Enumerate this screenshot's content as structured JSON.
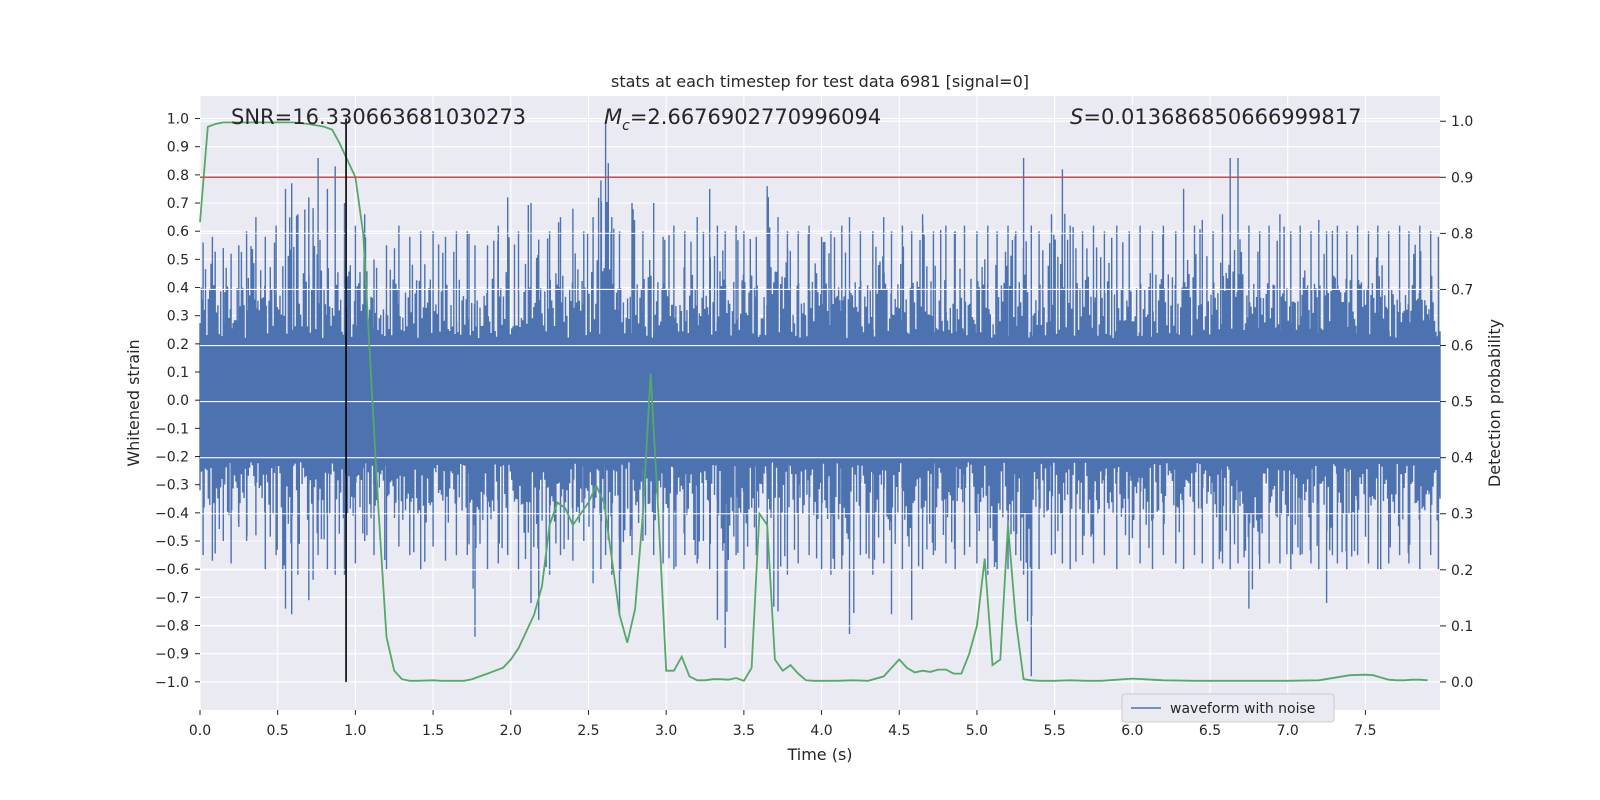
{
  "chart_data": {
    "type": "line",
    "title": "stats at each timestep for test data 6981 [signal=0]",
    "xlabel": "Time (s)",
    "ylabel_left": "Whitened strain",
    "ylabel_right": "Detection probability",
    "xlim": [
      0.0,
      7.98
    ],
    "ylim_left": [
      -1.1,
      1.08
    ],
    "ylim_right": [
      -0.05,
      1.045
    ],
    "x_ticks": [
      "0.0",
      "0.5",
      "1.0",
      "1.5",
      "2.0",
      "2.5",
      "3.0",
      "3.5",
      "4.0",
      "4.5",
      "5.0",
      "5.5",
      "6.0",
      "6.5",
      "7.0",
      "7.5"
    ],
    "y_ticks_left": [
      "1.0",
      "0.9",
      "0.8",
      "0.7",
      "0.6",
      "0.5",
      "0.4",
      "0.3",
      "0.2",
      "0.1",
      "0.0",
      "−0.1",
      "−0.2",
      "−0.3",
      "−0.4",
      "−0.5",
      "−0.6",
      "−0.7",
      "−0.8",
      "−0.9",
      "−1.0"
    ],
    "y_ticks_right": [
      "1.0",
      "0.9",
      "0.8",
      "0.7",
      "0.6",
      "0.5",
      "0.4",
      "0.3",
      "0.2",
      "0.1",
      "0.0"
    ],
    "grid": true,
    "background_color": "#EAEAF2",
    "annotations": {
      "snr": "SNR=16.330663681030273",
      "mc_symbol": "M",
      "mc_sub": "c",
      "mc_value": "=2.6676902770996094",
      "s_symbol": "S",
      "s_value": "=0.013686850666999817"
    },
    "legend": {
      "label": "waveform with noise",
      "placement": "lower right"
    },
    "threshold_line": {
      "y_right": 0.9,
      "color": "#C44E52"
    },
    "vertical_marker": {
      "x": 0.94,
      "y_from": -1.0,
      "y_to": 1.0,
      "color": "#000000"
    },
    "series": [
      {
        "name": "waveform with noise",
        "color": "#4C72B0",
        "axis": "left",
        "envelope_spikes": [
          [
            0.02,
            0.56,
            -0.55
          ],
          [
            0.08,
            0.58,
            -0.57
          ],
          [
            0.15,
            0.54,
            -0.5
          ],
          [
            0.2,
            0.52,
            -0.58
          ],
          [
            0.25,
            0.55,
            -0.45
          ],
          [
            0.3,
            0.6,
            -0.5
          ],
          [
            0.36,
            0.65,
            -0.48
          ],
          [
            0.42,
            0.58,
            -0.6
          ],
          [
            0.49,
            0.62,
            -0.55
          ],
          [
            0.55,
            0.75,
            -0.74
          ],
          [
            0.59,
            0.77,
            -0.76
          ],
          [
            0.63,
            0.66,
            -0.62
          ],
          [
            0.7,
            0.72,
            -0.71
          ],
          [
            0.76,
            0.86,
            -0.55
          ],
          [
            0.82,
            0.75,
            -0.6
          ],
          [
            0.87,
            0.83,
            -0.62
          ],
          [
            0.93,
            0.7,
            -0.62
          ],
          [
            1.0,
            0.62,
            -0.58
          ],
          [
            1.06,
            0.66,
            -0.5
          ],
          [
            1.12,
            0.5,
            -0.55
          ],
          [
            1.2,
            0.55,
            -0.6
          ],
          [
            1.28,
            0.62,
            -0.52
          ],
          [
            1.35,
            0.58,
            -0.55
          ],
          [
            1.42,
            0.6,
            -0.6
          ],
          [
            1.5,
            0.6,
            -0.52
          ],
          [
            1.58,
            0.58,
            -0.57
          ],
          [
            1.65,
            0.6,
            -0.55
          ],
          [
            1.72,
            0.6,
            -0.55
          ],
          [
            1.77,
            0.55,
            -0.84
          ],
          [
            1.85,
            0.55,
            -0.6
          ],
          [
            1.92,
            0.62,
            -0.58
          ],
          [
            1.98,
            0.72,
            -0.55
          ],
          [
            2.05,
            0.6,
            -0.6
          ],
          [
            2.13,
            0.7,
            -0.72
          ],
          [
            2.18,
            0.57,
            -0.78
          ],
          [
            2.25,
            0.6,
            -0.62
          ],
          [
            2.32,
            0.65,
            -0.55
          ],
          [
            2.4,
            0.68,
            -0.57
          ],
          [
            2.47,
            0.6,
            -0.5
          ],
          [
            2.53,
            0.65,
            -0.65
          ],
          [
            2.58,
            0.78,
            -0.6
          ],
          [
            2.61,
            0.98,
            -0.55
          ],
          [
            2.65,
            0.65,
            -0.62
          ],
          [
            2.7,
            0.6,
            -0.76
          ],
          [
            2.78,
            0.7,
            -0.55
          ],
          [
            2.85,
            0.6,
            -0.5
          ],
          [
            2.92,
            0.7,
            -0.55
          ],
          [
            2.98,
            0.58,
            -0.58
          ],
          [
            3.05,
            0.62,
            -0.6
          ],
          [
            3.12,
            0.6,
            -0.55
          ],
          [
            3.2,
            0.65,
            -0.58
          ],
          [
            3.28,
            0.75,
            -0.6
          ],
          [
            3.33,
            0.62,
            -0.78
          ],
          [
            3.38,
            0.6,
            -0.88
          ],
          [
            3.45,
            0.62,
            -0.55
          ],
          [
            3.5,
            0.6,
            -0.6
          ],
          [
            3.58,
            0.58,
            -0.55
          ],
          [
            3.65,
            0.76,
            -0.6
          ],
          [
            3.72,
            0.65,
            -0.75
          ],
          [
            3.78,
            0.6,
            -0.62
          ],
          [
            3.85,
            0.6,
            -0.58
          ],
          [
            3.92,
            0.62,
            -0.55
          ],
          [
            4.0,
            0.58,
            -0.6
          ],
          [
            4.06,
            0.6,
            -0.62
          ],
          [
            4.13,
            0.62,
            -0.6
          ],
          [
            4.18,
            0.65,
            -0.83
          ],
          [
            4.25,
            0.6,
            -0.55
          ],
          [
            4.33,
            0.6,
            -0.62
          ],
          [
            4.4,
            0.65,
            -0.58
          ],
          [
            4.45,
            0.6,
            -0.76
          ],
          [
            4.52,
            0.62,
            -0.6
          ],
          [
            4.58,
            0.6,
            -0.78
          ],
          [
            4.65,
            0.66,
            -0.6
          ],
          [
            4.72,
            0.6,
            -0.55
          ],
          [
            4.8,
            0.62,
            -0.58
          ],
          [
            4.86,
            0.6,
            -0.6
          ],
          [
            4.92,
            0.62,
            -0.55
          ],
          [
            5.0,
            0.6,
            -0.58
          ],
          [
            5.07,
            0.62,
            -0.62
          ],
          [
            5.13,
            0.6,
            -0.6
          ],
          [
            5.2,
            0.62,
            -0.6
          ],
          [
            5.25,
            0.6,
            -0.55
          ],
          [
            5.3,
            0.86,
            -0.62
          ],
          [
            5.35,
            0.62,
            -0.98
          ],
          [
            5.4,
            0.6,
            -0.6
          ],
          [
            5.48,
            0.66,
            -0.55
          ],
          [
            5.55,
            0.82,
            -0.58
          ],
          [
            5.6,
            0.62,
            -0.6
          ],
          [
            5.68,
            0.6,
            -0.55
          ],
          [
            5.75,
            0.62,
            -0.58
          ],
          [
            5.82,
            0.6,
            -0.55
          ],
          [
            5.9,
            0.62,
            -0.6
          ],
          [
            5.98,
            0.6,
            -0.55
          ],
          [
            6.05,
            0.62,
            -0.58
          ],
          [
            6.13,
            0.6,
            -0.6
          ],
          [
            6.2,
            0.62,
            -0.55
          ],
          [
            6.28,
            0.6,
            -0.58
          ],
          [
            6.33,
            0.75,
            -0.6
          ],
          [
            6.4,
            0.62,
            -0.55
          ],
          [
            6.45,
            0.64,
            -0.58
          ],
          [
            6.52,
            0.6,
            -0.6
          ],
          [
            6.58,
            0.66,
            -0.58
          ],
          [
            6.63,
            0.86,
            -0.6
          ],
          [
            6.68,
            0.86,
            -0.58
          ],
          [
            6.75,
            0.62,
            -0.74
          ],
          [
            6.82,
            0.6,
            -0.6
          ],
          [
            6.88,
            0.62,
            -0.58
          ],
          [
            6.95,
            0.66,
            -0.58
          ],
          [
            7.02,
            0.6,
            -0.6
          ],
          [
            7.08,
            0.62,
            -0.55
          ],
          [
            7.15,
            0.6,
            -0.58
          ],
          [
            7.2,
            0.64,
            -0.6
          ],
          [
            7.25,
            0.6,
            -0.72
          ],
          [
            7.32,
            0.62,
            -0.58
          ],
          [
            7.38,
            0.6,
            -0.6
          ],
          [
            7.45,
            0.62,
            -0.55
          ],
          [
            7.52,
            0.6,
            -0.58
          ],
          [
            7.58,
            0.62,
            -0.6
          ],
          [
            7.65,
            0.6,
            -0.58
          ],
          [
            7.72,
            0.62,
            -0.55
          ],
          [
            7.78,
            0.6,
            -0.58
          ],
          [
            7.85,
            0.62,
            -0.6
          ],
          [
            7.92,
            0.6,
            -0.55
          ],
          [
            7.97,
            0.58,
            -0.6
          ]
        ]
      },
      {
        "name": "",
        "color": "#55A868",
        "axis": "right",
        "x": [
          0.0,
          0.05,
          0.1,
          0.15,
          0.2,
          0.3,
          0.4,
          0.5,
          0.6,
          0.7,
          0.8,
          0.85,
          0.9,
          0.95,
          1.0,
          1.05,
          1.1,
          1.15,
          1.2,
          1.25,
          1.3,
          1.35,
          1.4,
          1.5,
          1.55,
          1.6,
          1.7,
          1.75,
          1.8,
          1.85,
          1.9,
          1.95,
          2.0,
          2.05,
          2.1,
          2.15,
          2.2,
          2.25,
          2.3,
          2.35,
          2.4,
          2.45,
          2.5,
          2.55,
          2.6,
          2.65,
          2.7,
          2.75,
          2.8,
          2.85,
          2.9,
          2.95,
          3.0,
          3.05,
          3.1,
          3.15,
          3.2,
          3.25,
          3.3,
          3.35,
          3.4,
          3.45,
          3.5,
          3.55,
          3.6,
          3.65,
          3.7,
          3.75,
          3.8,
          3.85,
          3.9,
          3.95,
          4.0,
          4.1,
          4.2,
          4.3,
          4.4,
          4.45,
          4.5,
          4.55,
          4.6,
          4.65,
          4.7,
          4.75,
          4.8,
          4.85,
          4.9,
          4.95,
          5.0,
          5.05,
          5.1,
          5.15,
          5.2,
          5.25,
          5.3,
          5.35,
          5.4,
          5.45,
          5.5,
          5.6,
          5.7,
          5.8,
          6.0,
          6.2,
          6.4,
          6.6,
          6.8,
          7.0,
          7.2,
          7.4,
          7.5,
          7.55,
          7.6,
          7.65,
          7.7,
          7.75,
          7.8,
          7.85,
          7.9
        ],
        "y": [
          0.82,
          0.99,
          0.995,
          0.998,
          0.998,
          0.998,
          0.998,
          0.998,
          0.998,
          0.995,
          0.99,
          0.985,
          0.96,
          0.93,
          0.9,
          0.8,
          0.55,
          0.3,
          0.08,
          0.02,
          0.005,
          0.002,
          0.002,
          0.003,
          0.002,
          0.002,
          0.002,
          0.005,
          0.01,
          0.015,
          0.02,
          0.025,
          0.04,
          0.06,
          0.09,
          0.12,
          0.17,
          0.28,
          0.32,
          0.31,
          0.28,
          0.3,
          0.32,
          0.35,
          0.32,
          0.22,
          0.12,
          0.07,
          0.13,
          0.3,
          0.55,
          0.3,
          0.02,
          0.02,
          0.045,
          0.01,
          0.003,
          0.003,
          0.005,
          0.005,
          0.004,
          0.007,
          0.002,
          0.025,
          0.3,
          0.28,
          0.04,
          0.02,
          0.03,
          0.015,
          0.003,
          0.002,
          0.002,
          0.002,
          0.003,
          0.002,
          0.01,
          0.025,
          0.04,
          0.025,
          0.017,
          0.02,
          0.018,
          0.022,
          0.022,
          0.015,
          0.015,
          0.05,
          0.1,
          0.22,
          0.03,
          0.04,
          0.28,
          0.11,
          0.005,
          0.003,
          0.002,
          0.002,
          0.002,
          0.003,
          0.002,
          0.002,
          0.006,
          0.003,
          0.002,
          0.002,
          0.002,
          0.002,
          0.003,
          0.012,
          0.013,
          0.012,
          0.008,
          0.004,
          0.003,
          0.003,
          0.004,
          0.004,
          0.003
        ]
      }
    ]
  }
}
